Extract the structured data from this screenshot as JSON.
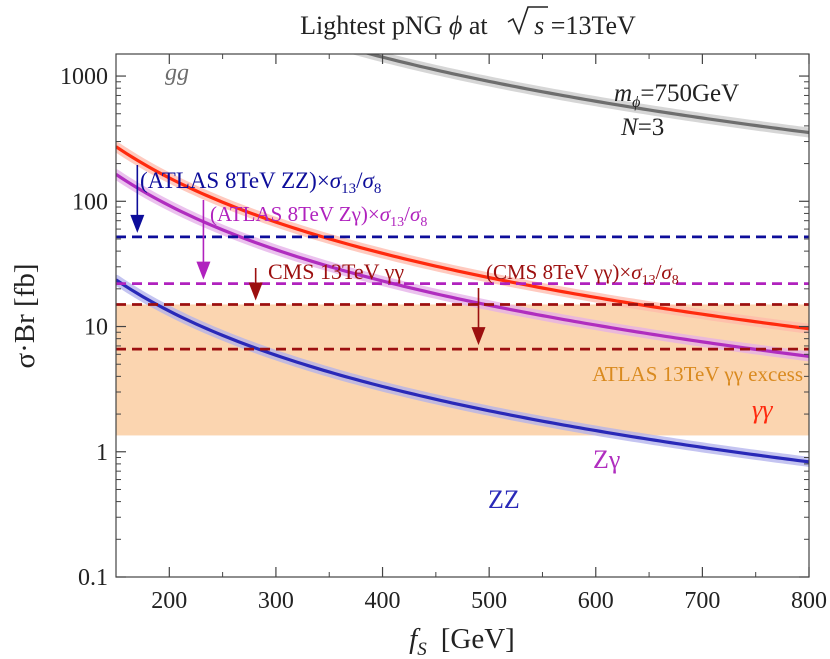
{
  "chart_data": {
    "type": "line",
    "title": "Lightest pNG ϕ at √s =13TeV",
    "title_parts": {
      "pre": "Lightest pNG ",
      "phi": "ϕ",
      "mid": " at ",
      "s": "s",
      "post": " =13TeV"
    },
    "xlabel": {
      "f": "f",
      "sub": "S",
      "unit": "[GeV]"
    },
    "ylabel": "σ·Br [fb]",
    "xlim": [
      150,
      800
    ],
    "ylim": [
      0.1,
      1500
    ],
    "y_scale": "log",
    "x_ticks": [
      200,
      300,
      400,
      500,
      600,
      700,
      800
    ],
    "y_ticks": [
      {
        "value": 0.1,
        "label": "0.1"
      },
      {
        "value": 1,
        "label": "1"
      },
      {
        "value": 10,
        "label": "10"
      },
      {
        "value": 100,
        "label": "100"
      },
      {
        "value": 1000,
        "label": "1000"
      }
    ],
    "annotation": {
      "m": "m",
      "msub": "ϕ",
      "mval": "=750GeV",
      "n": "N",
      "nval": "=3"
    },
    "band": {
      "name": "ATLAS 13TeV γγ excess",
      "y_min": 1.35,
      "y_max": 15,
      "color": "#fbd5b0",
      "label_color": "#d98a1f"
    },
    "series": [
      {
        "name": "gg",
        "color": "#6e6e6e",
        "band_color": "#c8c8c8",
        "k": 1416,
        "p": 2.0,
        "curve_x_end": 800
      },
      {
        "name": "γγ",
        "color": "#ff2a0e",
        "band_color": "#ffb8aa",
        "k": 38.4,
        "p": 2.0,
        "curve_x_end": 800
      },
      {
        "name": "Zγ",
        "color": "#b02dbf",
        "band_color": "#e4aee8",
        "k": 23.1,
        "p": 2.0,
        "curve_x_end": 800
      },
      {
        "name": "ZZ",
        "color": "#2929b8",
        "band_color": "#b0b0ec",
        "k": 3.32,
        "p": 2.0,
        "curve_x_end": 800
      }
    ],
    "limits": [
      {
        "name": "(ATLAS 8TeV ZZ)×σ13/σ8",
        "parts": [
          "(ATLAS 8TeV ZZ)×",
          "σ",
          "13",
          "/",
          "σ",
          "8"
        ],
        "value": 52,
        "color": "#0d0d9a",
        "arrow_x": 170
      },
      {
        "name": "(ATLAS 8TeV Zγ)×σ13/σ8",
        "parts": [
          "(ATLAS 8TeV Zγ)×",
          "σ",
          "13",
          "/",
          "σ",
          "8"
        ],
        "value": 22,
        "color": "#b022be",
        "arrow_x": 232
      },
      {
        "name": "CMS 13TeV γγ",
        "parts": [
          "CMS 13TeV γγ"
        ],
        "value": 15,
        "color": "#9c0f0f",
        "arrow_x": 281
      },
      {
        "name": "(CMS 8TeV γγ)×σ13/σ8",
        "parts": [
          "(CMS 8TeV γγ)×",
          "σ",
          "13",
          "/",
          "σ",
          "8"
        ],
        "value": 6.6,
        "color": "#9c0f0f",
        "arrow_x": 490
      }
    ]
  }
}
